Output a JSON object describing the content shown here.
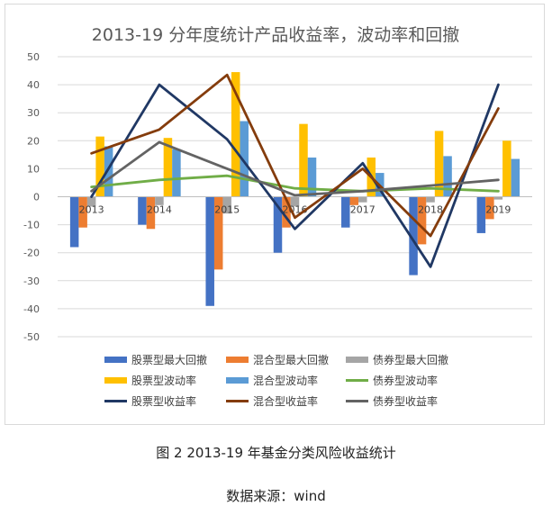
{
  "caption": "图 2 2013-19 年基金分类风险收益统计",
  "source": "数据来源：wind",
  "chart_data": {
    "type": "bar",
    "title": "2013-19  分年度统计产品收益率，波动率和回撤",
    "categories": [
      "2013",
      "2014",
      "2015",
      "2016",
      "2017",
      "2018",
      "2019"
    ],
    "ylim": [
      -50,
      50
    ],
    "yticks": [
      50,
      40,
      30,
      20,
      10,
      0,
      -10,
      -20,
      -30,
      -40,
      -50
    ],
    "grid": true,
    "legend_position": "bottom",
    "bar_series": [
      {
        "name": "股票型最大回撤",
        "color": "#4472c4",
        "values": [
          -18,
          -10,
          -39,
          -20,
          -11,
          -28,
          -13
        ]
      },
      {
        "name": "混合型最大回撤",
        "color": "#ed7d31",
        "values": [
          -11,
          -11.5,
          -26,
          -11,
          -3,
          -17,
          -8
        ]
      },
      {
        "name": "债券型最大回撤",
        "color": "#a5a5a5",
        "values": [
          -3.5,
          -3,
          -6,
          -3.5,
          -2,
          -2,
          -1
        ]
      },
      {
        "name": "股票型波动率",
        "color": "#ffc000",
        "values": [
          21.5,
          21,
          44.5,
          26,
          14,
          23.5,
          20
        ]
      },
      {
        "name": "混合型波动率",
        "color": "#5b9bd5",
        "values": [
          18,
          17,
          27,
          14,
          8.5,
          14.5,
          13.5
        ]
      }
    ],
    "line_series": [
      {
        "name": "债券型波动率",
        "color": "#70ad47",
        "values": [
          3.5,
          6,
          7.5,
          3,
          2,
          3,
          2
        ]
      },
      {
        "name": "股票型收益率",
        "color": "#203864",
        "values": [
          0,
          40,
          20.5,
          -11.5,
          12,
          -25,
          40
        ]
      },
      {
        "name": "混合型收益率",
        "color": "#843c0c",
        "values": [
          15.5,
          24,
          43.5,
          -7.5,
          10,
          -14,
          31.5
        ]
      },
      {
        "name": "债券型收益率",
        "color": "#636363",
        "values": [
          2,
          19.5,
          10,
          0.5,
          2,
          4,
          6
        ]
      }
    ]
  }
}
